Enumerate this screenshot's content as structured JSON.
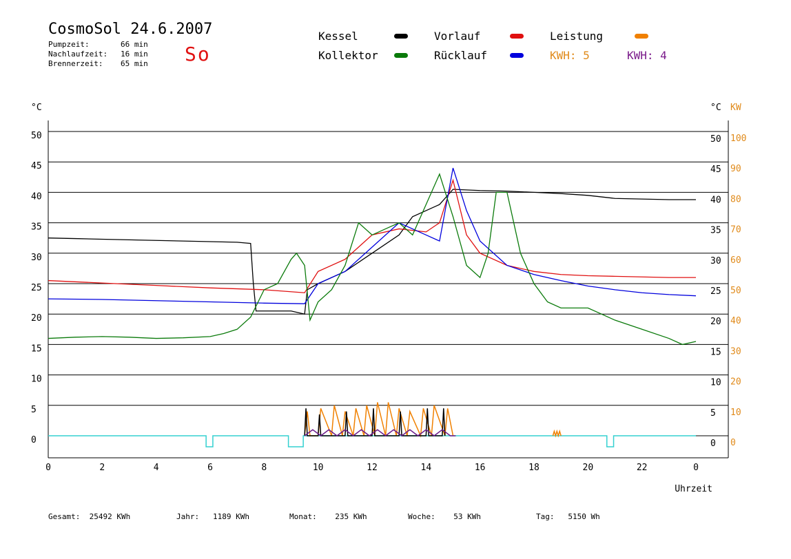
{
  "header": {
    "title": "CosmoSol 24.6.2007",
    "day": "So",
    "stats": [
      {
        "label": "Pumpzeit:",
        "value": "66 min"
      },
      {
        "label": "Nachlaufzeit:",
        "value": "16 min"
      },
      {
        "label": "Brennerzeit:",
        "value": "65 min"
      }
    ]
  },
  "legend": {
    "kessel": {
      "label": "Kessel",
      "color": "#000000"
    },
    "kollektor": {
      "label": "Kollektor",
      "color": "#0a7a0a"
    },
    "vorlauf": {
      "label": "Vorlauf",
      "color": "#e01010"
    },
    "ruecklauf": {
      "label": "Rücklauf",
      "color": "#0000dd"
    },
    "leistung": {
      "label": "Leistung",
      "color": "#f08000"
    },
    "kwh1": {
      "label": "KWH: 5",
      "color": "#e08a1a"
    },
    "kwh2": {
      "label": "KWH: 4",
      "color": "#7a1a8a"
    }
  },
  "footer": [
    {
      "label": "Gesamt:",
      "value": "25492 KWh"
    },
    {
      "label": "Jahr:",
      "value": "1189 KWh"
    },
    {
      "label": "Monat:",
      "value": "235 KWh"
    },
    {
      "label": "Woche:",
      "value": "53 KWh"
    },
    {
      "label": "Tag:",
      "value": "5150 Wh"
    }
  ],
  "chart_data": {
    "type": "line",
    "xlabel": "Uhrzeit",
    "y_left_unit": "°C",
    "y_right_unit_c": "°C",
    "y_right_unit_kw": "KW",
    "xlim": [
      0,
      24
    ],
    "ylim": [
      0,
      50
    ],
    "y2lim": [
      0,
      100
    ],
    "x_ticks": [
      "0",
      "2",
      "4",
      "6",
      "8",
      "10",
      "12",
      "14",
      "16",
      "18",
      "20",
      "22",
      "0"
    ],
    "y_ticks": [
      "0",
      "5",
      "10",
      "15",
      "20",
      "25",
      "30",
      "35",
      "40",
      "45",
      "50"
    ],
    "y2_ticks": [
      "0",
      "10",
      "20",
      "30",
      "40",
      "50",
      "60",
      "70",
      "80",
      "90",
      "100"
    ],
    "grid": true,
    "series": [
      {
        "name": "Kessel",
        "color": "#000000",
        "x": [
          0,
          1,
          2,
          3,
          4,
          5,
          6,
          7,
          7.5,
          7.6,
          7.7,
          8,
          9,
          9.5,
          9.6,
          10,
          11,
          12,
          13,
          13.5,
          14,
          14.5,
          15,
          16,
          17,
          18,
          19,
          20,
          21,
          22,
          23,
          24
        ],
        "y": [
          32.5,
          32.4,
          32.3,
          32.2,
          32.1,
          32.0,
          31.9,
          31.8,
          31.6,
          25,
          20.5,
          20.5,
          20.5,
          20,
          24,
          25,
          27,
          30,
          33,
          36,
          37,
          38,
          40.5,
          40.3,
          40.2,
          40.0,
          39.8,
          39.5,
          39.0,
          38.9,
          38.8,
          38.8
        ]
      },
      {
        "name": "Vorlauf",
        "color": "#e01010",
        "x": [
          0,
          2,
          4,
          6,
          8,
          9.5,
          10,
          11,
          12,
          13,
          14,
          14.5,
          15,
          15.5,
          16,
          17,
          18,
          19,
          20,
          21,
          22,
          23,
          24
        ],
        "y": [
          25.5,
          25.1,
          24.7,
          24.3,
          24.0,
          23.5,
          27,
          29,
          33,
          34,
          33.5,
          35,
          42,
          33,
          30,
          28,
          27,
          26.5,
          26.3,
          26.2,
          26.1,
          26.0,
          26.0
        ]
      },
      {
        "name": "Rücklauf",
        "color": "#0000dd",
        "x": [
          0,
          2,
          4,
          6,
          8,
          9.5,
          10,
          11,
          12,
          13,
          14,
          14.5,
          15,
          15.5,
          16,
          17,
          18,
          19,
          20,
          21,
          22,
          23,
          24
        ],
        "y": [
          22.5,
          22.4,
          22.2,
          22.0,
          21.8,
          21.7,
          25,
          27,
          31,
          35,
          33,
          32,
          44,
          37,
          32,
          28,
          26.5,
          25.5,
          24.6,
          24.0,
          23.5,
          23.2,
          23.0
        ]
      },
      {
        "name": "Kollektor",
        "color": "#0a7a0a",
        "x": [
          0,
          1,
          2,
          3,
          4,
          5,
          6,
          6.5,
          7,
          7.5,
          8,
          8.5,
          9,
          9.2,
          9.5,
          9.7,
          10,
          10.5,
          11,
          11.5,
          12,
          12.5,
          13,
          13.5,
          14,
          14.5,
          15,
          15.5,
          16,
          16.3,
          16.6,
          17,
          17.5,
          18,
          18.5,
          19,
          19.5,
          20,
          20.5,
          21,
          22,
          23,
          23.5,
          24
        ],
        "y": [
          16,
          16.2,
          16.3,
          16.2,
          16.0,
          16.1,
          16.3,
          16.8,
          17.5,
          19.5,
          24,
          25,
          29,
          30,
          28,
          19,
          22,
          24,
          28,
          35,
          33,
          34,
          35,
          33,
          38,
          43,
          36,
          28,
          26,
          30,
          40,
          40,
          30,
          25,
          22,
          21,
          21,
          21,
          20,
          19,
          17.5,
          16,
          15,
          15.5
        ]
      }
    ],
    "power": [
      {
        "name": "Leistung",
        "color": "#f08000",
        "x": [
          9.5,
          9.6,
          9.7,
          10.0,
          10.1,
          10.5,
          10.6,
          10.9,
          11.0,
          11.3,
          11.4,
          11.7,
          11.8,
          12.1,
          12.2,
          12.5,
          12.6,
          12.9,
          13.0,
          13.3,
          13.4,
          13.8,
          13.9,
          14.2,
          14.3,
          14.7,
          14.8,
          15.0
        ],
        "y": [
          0,
          8,
          0,
          0,
          9,
          0,
          10,
          0,
          8,
          0,
          9,
          0,
          10,
          0,
          11,
          0,
          11,
          0,
          9,
          0,
          8,
          0,
          9,
          0,
          10,
          0,
          9,
          0
        ]
      },
      {
        "name": "Kessel Leistung",
        "color": "#000000",
        "x": [
          9.5,
          9.55,
          9.6,
          10.0,
          10.05,
          10.1,
          11.0,
          11.05,
          11.1,
          12.0,
          12.05,
          12.1,
          13.0,
          13.05,
          13.1,
          14.0,
          14.05,
          14.1,
          14.6,
          14.65,
          14.7
        ],
        "y": [
          0,
          9,
          0,
          0,
          7,
          0,
          0,
          8,
          0,
          0,
          9,
          0,
          0,
          8,
          0,
          0,
          9,
          0,
          0,
          9,
          0
        ]
      },
      {
        "name": "Pumpe",
        "color": "#6a1a8a",
        "x": [
          9.5,
          9.8,
          10.1,
          10.4,
          10.7,
          11.0,
          11.3,
          11.6,
          11.9,
          12.2,
          12.5,
          12.8,
          13.1,
          13.4,
          13.7,
          14.0,
          14.3,
          14.6,
          14.9,
          15.1
        ],
        "y": [
          0,
          2,
          0,
          2,
          0,
          2,
          0,
          2,
          0,
          2,
          0,
          2,
          0,
          2,
          0,
          2,
          0,
          2,
          0,
          0
        ]
      },
      {
        "name": "Leistung 18",
        "color": "#f08000",
        "x": [
          18.7,
          18.75,
          18.8,
          18.85,
          18.9,
          18.95,
          19.0
        ],
        "y": [
          0,
          1.5,
          0,
          1.5,
          0,
          1.5,
          0
        ]
      }
    ],
    "status_line": {
      "color": "#33d0d0",
      "pulses": [
        [
          5.85,
          6.1
        ],
        [
          8.9,
          9.45
        ],
        [
          20.7,
          20.95
        ]
      ]
    }
  }
}
